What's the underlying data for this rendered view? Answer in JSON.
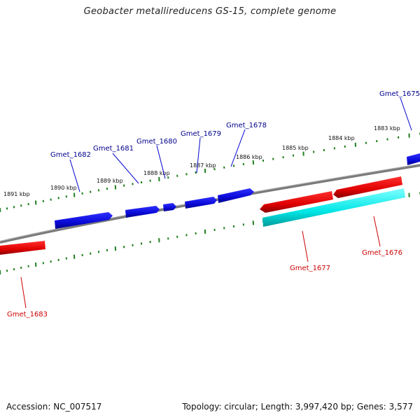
{
  "title": "Geobacter metallireducens GS-15, complete genome",
  "footer": {
    "accession": "Accession: NC_007517",
    "summary": "Topology: circular; Length: 3,997,420 bp; Genes: 3,577"
  },
  "colors": {
    "forward_gene": "#1010e0",
    "reverse_gene": "#e00000",
    "reverse_annotation": "#00e6e6",
    "backbone": "#7a7a7a",
    "tick": "#208020",
    "forward_label": "#00008b",
    "reverse_label": "#cc0000"
  },
  "scale_ticks": [
    "1891 kbp",
    "1890 kbp",
    "1889 kbp",
    "1888 kbp",
    "1887 kbp",
    "1886 kbp",
    "1885 kbp",
    "1884 kbp",
    "1883 kbp"
  ],
  "forward_genes": [
    "Gmet_1682",
    "Gmet_1681",
    "Gmet_1680",
    "Gmet_1679",
    "Gmet_1678",
    "Gmet_1675"
  ],
  "reverse_genes": [
    "Gmet_1683",
    "Gmet_1677",
    "Gmet_1676"
  ]
}
